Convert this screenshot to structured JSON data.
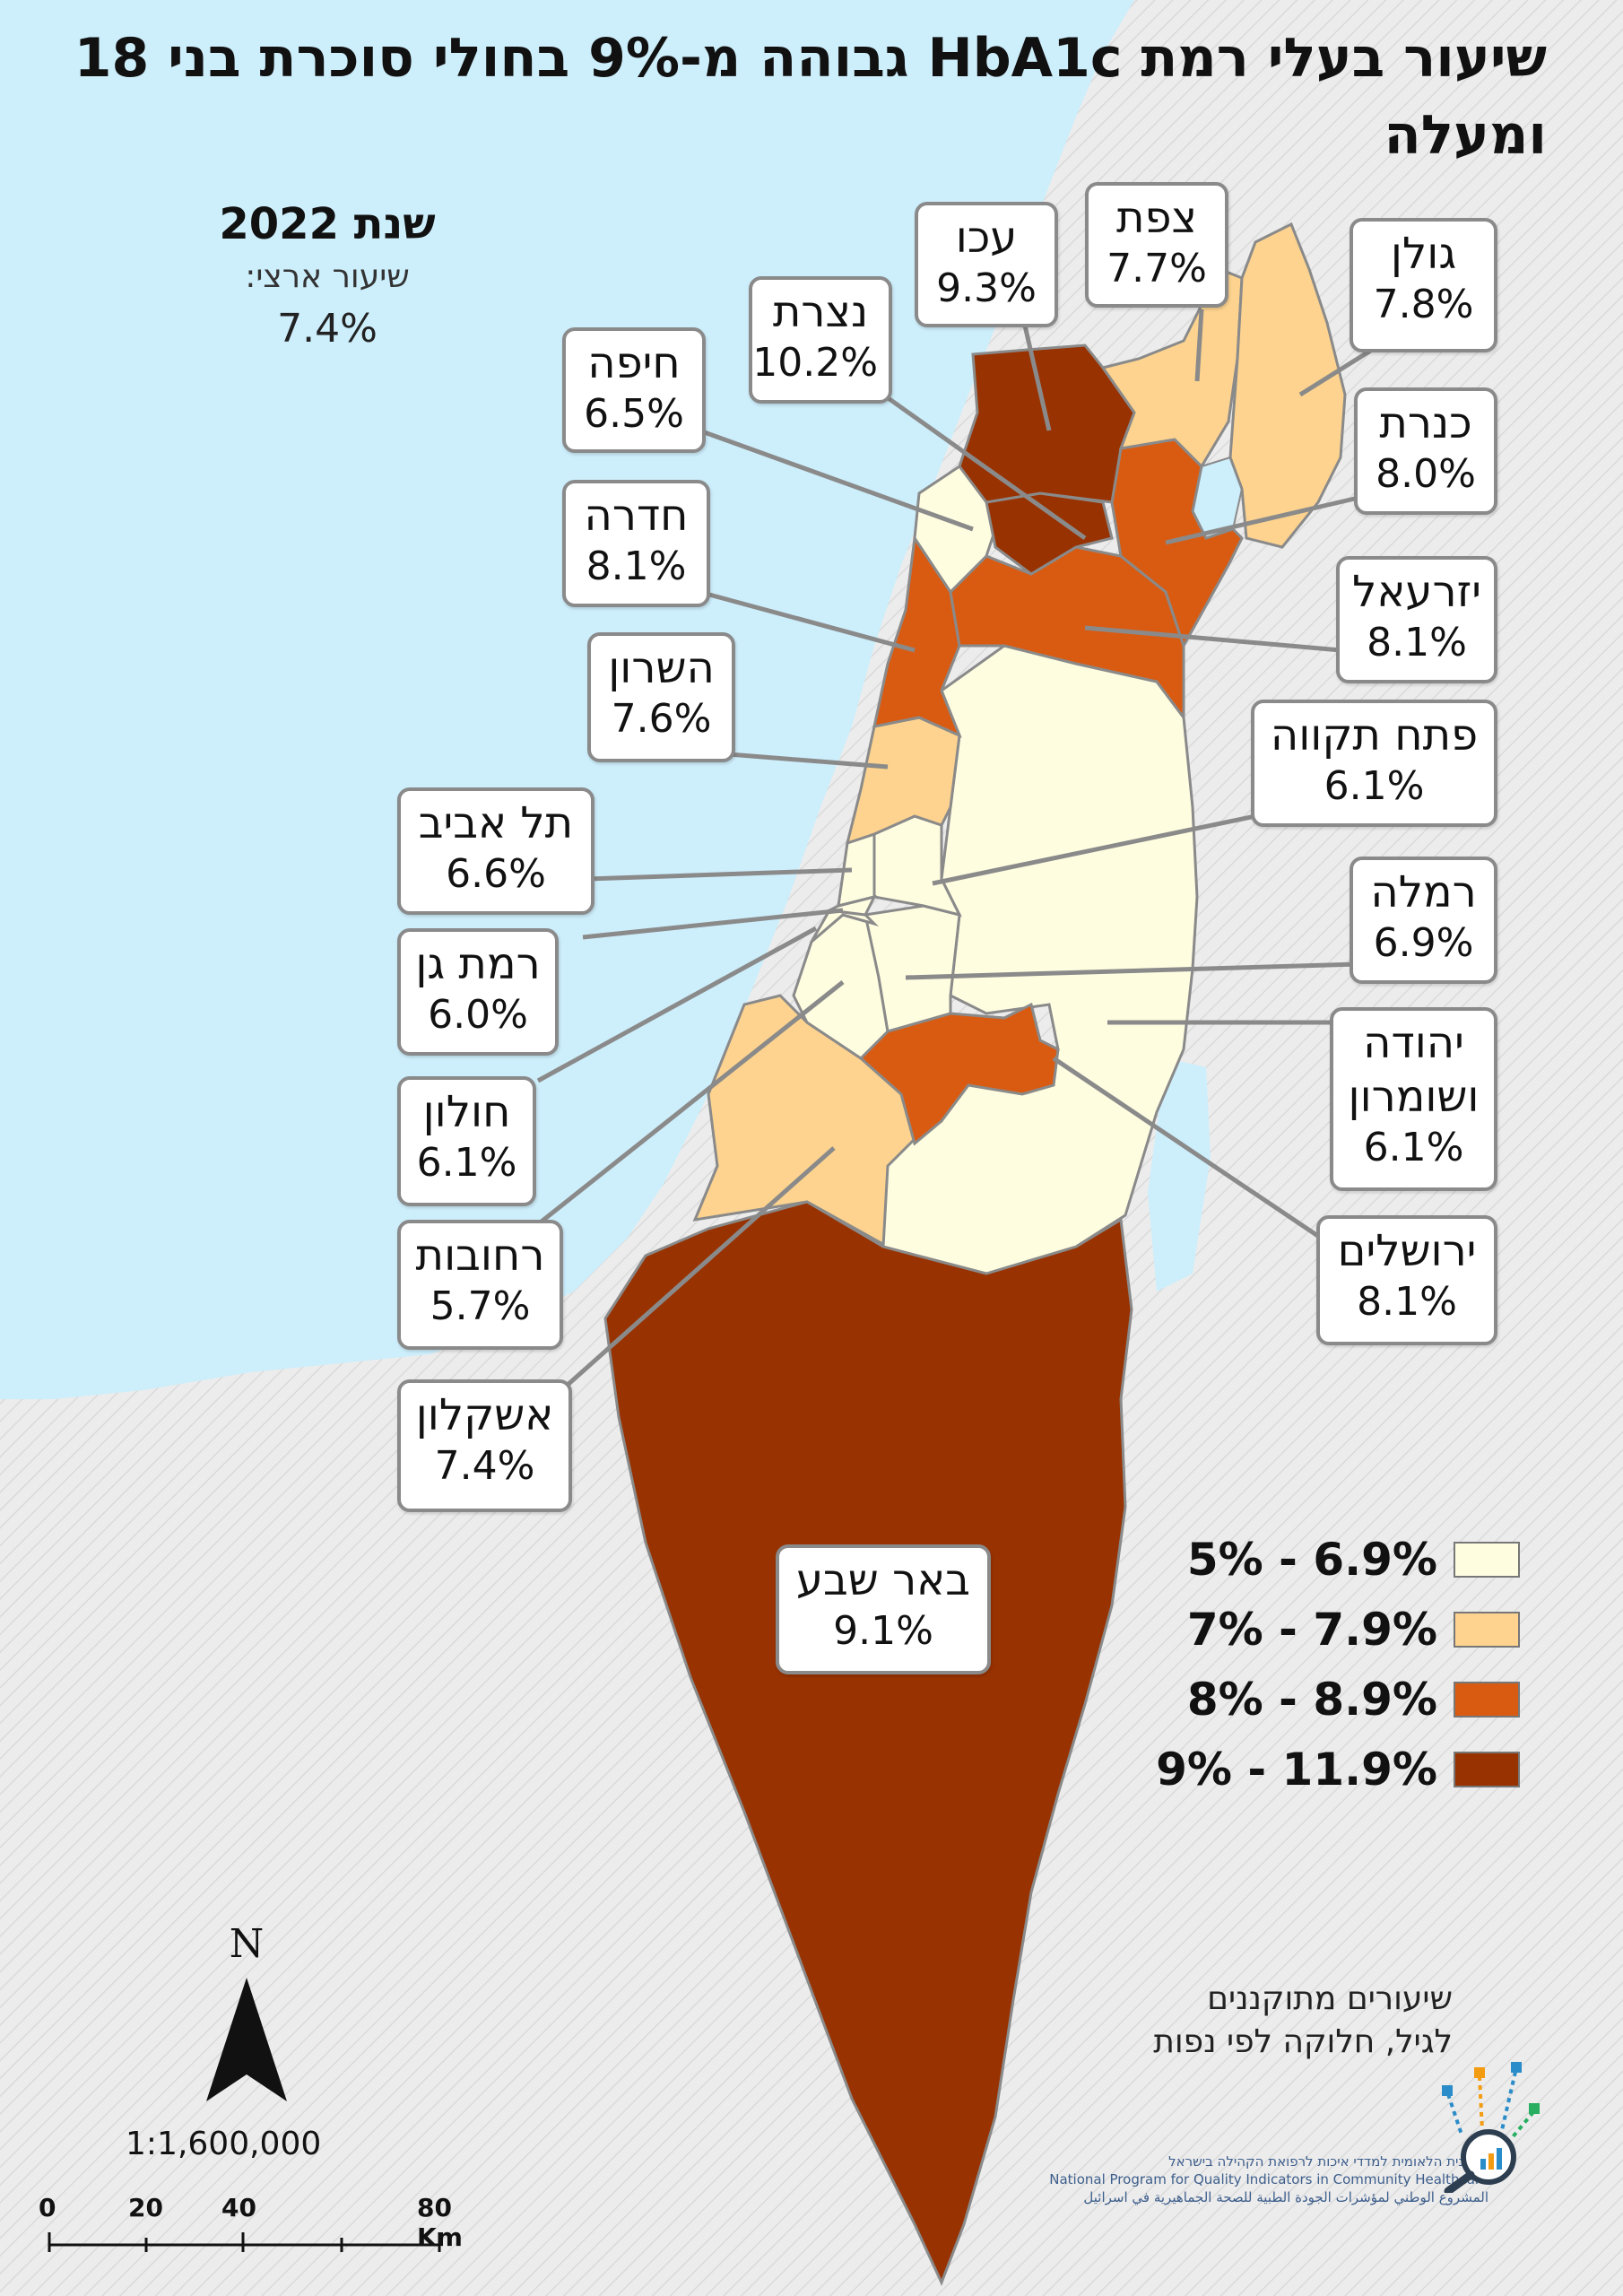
{
  "title": "שיעור  בעלי רמת  HbA1c גבוהה מ-9% בחולי סוכרת בני 18 ומעלה",
  "year": "שנת 2022",
  "national_rate_label": "שיעור ארצי:",
  "national_rate_value": "7.4%",
  "regions": [
    {
      "name": "עכו",
      "value": "9.3%"
    },
    {
      "name": "צפת",
      "value": "7.7%"
    },
    {
      "name": "גולן",
      "value": "7.8%"
    },
    {
      "name": "נצרת",
      "value": "10.2%"
    },
    {
      "name": "חיפה",
      "value": "6.5%"
    },
    {
      "name": "כנרת",
      "value": "8.0%"
    },
    {
      "name": "חדרה",
      "value": "8.1%"
    },
    {
      "name": "יזרעאל",
      "value": "8.1%"
    },
    {
      "name": "השרון",
      "value": "7.6%"
    },
    {
      "name": "פתח תקווה",
      "value": "6.1%"
    },
    {
      "name": "תל אביב",
      "value": "6.6%"
    },
    {
      "name": "רמלה",
      "value": "6.9%"
    },
    {
      "name": "רמת גן",
      "value": "6.0%"
    },
    {
      "name": "יהודה ושומרון",
      "value": "6.1%"
    },
    {
      "name": "חולון",
      "value": "6.1%"
    },
    {
      "name": "ירושלים",
      "value": "8.1%"
    },
    {
      "name": "רחובות",
      "value": "5.7%"
    },
    {
      "name": "אשקלון",
      "value": "7.4%"
    },
    {
      "name": "באר שבע",
      "value": "9.1%"
    }
  ],
  "legend": [
    {
      "label": "5% - 6.9%",
      "color": "#fffde0"
    },
    {
      "label": "7% - 7.9%",
      "color": "#fdd38f"
    },
    {
      "label": "8% - 8.9%",
      "color": "#d95b12"
    },
    {
      "label": "9% - 11.9%",
      "color": "#983200"
    }
  ],
  "note_line1": "שיעורים מתוקננים",
  "note_line2": "לגיל, חלוקה לפי נפות",
  "north_label": "N",
  "scale_ratio": "1:1,600,000",
  "scalebar_ticks": [
    "0",
    "20",
    "40",
    "80 Km"
  ],
  "org_line1": "התכנית הלאומית למדדי איכות לרפואת הקהילה בישראל",
  "org_line2": "National Program for Quality Indicators in Community Healthcare",
  "org_line3": "المشروع الوطني لمؤشرات الجودة الطبية للصحة الجماهيرية في اسرائيل",
  "colors": {
    "sea": "#cdeefb",
    "land": "#e8e8e8",
    "outline": "#8a8a8a"
  }
}
